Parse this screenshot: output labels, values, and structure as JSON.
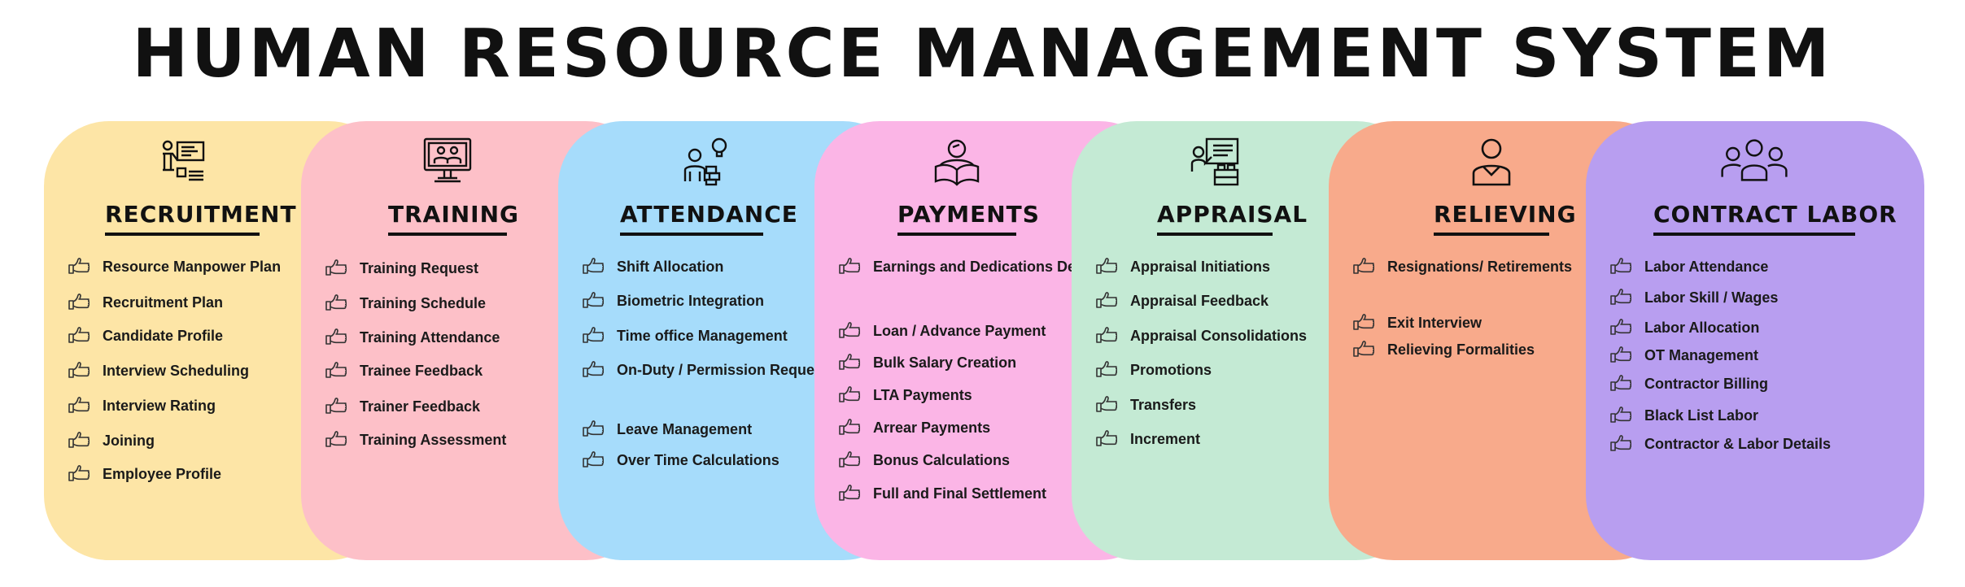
{
  "title": "HUMAN RESOURCE MANAGEMENT SYSTEM",
  "colors": {
    "recruitment": "#fde5a6",
    "training": "#fdc0c8",
    "attendance": "#a6dcfb",
    "payments": "#fbb5e6",
    "appraisal": "#c4ead4",
    "relieving": "#f8aa8b",
    "contract_labor": "#b89ef0"
  },
  "cards": [
    {
      "key": "recruitment",
      "heading": "RECRUITMENT",
      "icon": "presenter-whiteboard-icon",
      "items": [
        "Resource Manpower Plan",
        "Recruitment Plan",
        "Candidate Profile",
        "Interview Scheduling",
        "Interview Rating",
        "Joining",
        "Employee Profile"
      ]
    },
    {
      "key": "training",
      "heading": "TRAINING",
      "icon": "video-conference-icon",
      "items": [
        "Training Request",
        "Training Schedule",
        "Training Attendance",
        "Trainee Feedback",
        "Trainer Feedback",
        "Training Assessment"
      ]
    },
    {
      "key": "attendance",
      "heading": "ATTENDANCE",
      "icon": "workers-idea-icon",
      "items": [
        "Shift Allocation",
        "Biometric Integration",
        "Time office Management",
        "On-Duty / Permission Request",
        "Leave Management",
        "Over Time Calculations"
      ]
    },
    {
      "key": "payments",
      "heading": "PAYMENTS",
      "icon": "reader-book-icon",
      "items": [
        "Earnings and Dedications Details",
        "Loan / Advance Payment",
        "Bulk Salary Creation",
        "LTA Payments",
        "Arrear Payments",
        "Bonus Calculations",
        "Full and Final Settlement"
      ]
    },
    {
      "key": "appraisal",
      "heading": "APPRAISAL",
      "icon": "presentation-board-icon",
      "items": [
        "Appraisal Initiations",
        "Appraisal Feedback",
        "Appraisal Consolidations",
        "Promotions",
        "Transfers",
        "Increment"
      ]
    },
    {
      "key": "relieving",
      "heading": "RELIEVING",
      "icon": "person-icon",
      "items": [
        "Resignations/ Retirements",
        "Exit Interview",
        "Relieving Formalities"
      ]
    },
    {
      "key": "contract_labor",
      "heading": "CONTRACT LABOR",
      "icon": "group-icon",
      "items": [
        "Labor Attendance",
        "Labor Skill / Wages",
        "Labor Allocation",
        "OT Management",
        "Contractor Billing",
        "Black List Labor",
        "Contractor & Labor Details"
      ]
    }
  ]
}
